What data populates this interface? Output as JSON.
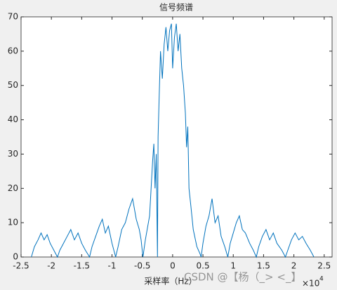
{
  "chart_data": {
    "type": "line",
    "title": "信号频谱",
    "xlabel": "采样率（Hz）",
    "x_multiplier": "×10",
    "x_exponent": "4",
    "watermark": "CSDN @【杨（_> <_】",
    "color": "#0072bd",
    "x": [
      -2.33,
      -2.28,
      -2.22,
      -2.17,
      -2.12,
      -2.07,
      -2.02,
      -1.96,
      -1.9,
      -1.86,
      -1.8,
      -1.74,
      -1.68,
      -1.62,
      -1.56,
      -1.5,
      -1.44,
      -1.37,
      -1.33,
      -1.27,
      -1.21,
      -1.16,
      -1.11,
      -1.06,
      -1.0,
      -0.94,
      -0.9,
      -0.84,
      -0.78,
      -0.72,
      -0.66,
      -0.6,
      -0.55,
      -0.52,
      -0.49,
      -0.45,
      -0.38,
      -0.33,
      -0.31,
      -0.29,
      -0.27,
      -0.25,
      -0.24,
      -0.22,
      -0.2,
      -0.17,
      -0.14,
      -0.11,
      -0.08,
      -0.05,
      -0.02,
      0,
      0.03,
      0.06,
      0.09,
      0.12,
      0.15,
      0.18,
      0.21,
      0.23,
      0.25,
      0.27,
      0.3,
      0.34,
      0.4,
      0.45,
      0.47,
      0.5,
      0.55,
      0.6,
      0.65,
      0.7,
      0.75,
      0.8,
      0.86,
      0.91,
      0.95,
      1.0,
      1.05,
      1.1,
      1.15,
      1.2,
      1.27,
      1.33,
      1.38,
      1.42,
      1.48,
      1.54,
      1.6,
      1.66,
      1.72,
      1.8,
      1.86,
      1.9,
      1.96,
      2.02,
      2.08,
      2.14,
      2.2,
      2.27,
      2.33
    ],
    "values": [
      0,
      3,
      5,
      7,
      5,
      6.5,
      4,
      2,
      0,
      2,
      4,
      6,
      8,
      5,
      7,
      4,
      2,
      0,
      3,
      6,
      9,
      11,
      7,
      9,
      4,
      0,
      3,
      8,
      10,
      14,
      17,
      11,
      8,
      5,
      0,
      5,
      12,
      28,
      33,
      20,
      30,
      0,
      35,
      48,
      60,
      52,
      62,
      67,
      60,
      66,
      68,
      55,
      64,
      68,
      60,
      65,
      55,
      50,
      42,
      32,
      38,
      20,
      15,
      8,
      3,
      1,
      0,
      4,
      9,
      12,
      17,
      10,
      12,
      6,
      3,
      0,
      4,
      7,
      10,
      12,
      8,
      7,
      4,
      2,
      0,
      3,
      6,
      8,
      5,
      7,
      4,
      2,
      0,
      2,
      5,
      7,
      5,
      6,
      4,
      2,
      0
    ],
    "xlim": [
      -2.5,
      2.63
    ],
    "ylim": [
      0,
      70
    ],
    "xticks": [
      -2.5,
      -2,
      -1.5,
      -1,
      -0.5,
      0,
      0.5,
      1,
      1.5,
      2,
      2.5
    ],
    "yticks": [
      0,
      10,
      20,
      30,
      40,
      50,
      60,
      70
    ]
  }
}
